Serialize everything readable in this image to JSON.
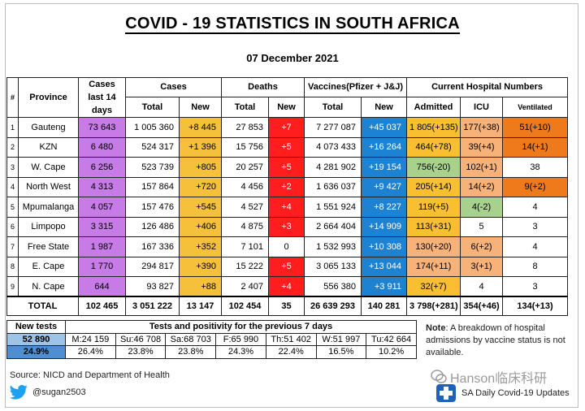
{
  "title": "COVID - 19 STATISTICS IN SOUTH AFRICA",
  "date": "07 December 2021",
  "headers": {
    "hash": "#",
    "province": "Province",
    "cases14": "Cases last 14 days",
    "cases": "Cases",
    "deaths": "Deaths",
    "vaccines": "Vaccines(Pfizer + J&J)",
    "hospital": "Current Hospital Numbers",
    "total": "Total",
    "new": "New",
    "admitted": "Admitted",
    "icu": "ICU",
    "ventilated": "Ventilated"
  },
  "rows": [
    {
      "num": "1",
      "province": "Gauteng",
      "cases14": "73 643",
      "cases_total": "1 005 360",
      "cases_new": "+8 445",
      "deaths_total": "27 853",
      "deaths_new": "+7",
      "vacc_total": "7 277 087",
      "vacc_new": "+45 037",
      "admitted": "1 805(+135)",
      "icu": "177(+38)",
      "ventilated": "51(+10)"
    },
    {
      "num": "2",
      "province": "KZN",
      "cases14": "6 480",
      "cases_total": "524 317",
      "cases_new": "+1 396",
      "deaths_total": "15 756",
      "deaths_new": "+5",
      "vacc_total": "4 073 433",
      "vacc_new": "+16 264",
      "admitted": "464(+78)",
      "icu": "39(+4)",
      "ventilated": "14(+1)"
    },
    {
      "num": "3",
      "province": "W. Cape",
      "cases14": "6 256",
      "cases_total": "523 739",
      "cases_new": "+805",
      "deaths_total": "20 257",
      "deaths_new": "+5",
      "vacc_total": "4 281 902",
      "vacc_new": "+19 154",
      "admitted": "756(-20)",
      "icu": "102(+1)",
      "ventilated": "38"
    },
    {
      "num": "4",
      "province": "North West",
      "cases14": "4 313",
      "cases_total": "157 864",
      "cases_new": "+720",
      "deaths_total": "4 456",
      "deaths_new": "+2",
      "vacc_total": "1 636 037",
      "vacc_new": "+9 427",
      "admitted": "205(+14)",
      "icu": "14(+2)",
      "ventilated": "9(+2)"
    },
    {
      "num": "5",
      "province": "Mpumalanga",
      "cases14": "4 057",
      "cases_total": "157 476",
      "cases_new": "+545",
      "deaths_total": "4 527",
      "deaths_new": "+4",
      "vacc_total": "1 551 924",
      "vacc_new": "+8 227",
      "admitted": "119(+5)",
      "icu": "4(-2)",
      "ventilated": "4"
    },
    {
      "num": "6",
      "province": "Limpopo",
      "cases14": "3 315",
      "cases_total": "126 486",
      "cases_new": "+406",
      "deaths_total": "4 875",
      "deaths_new": "+3",
      "vacc_total": "2 664 404",
      "vacc_new": "+14 909",
      "admitted": "113(+31)",
      "icu": "5",
      "ventilated": "3"
    },
    {
      "num": "7",
      "province": "Free State",
      "cases14": "1 987",
      "cases_total": "167 336",
      "cases_new": "+352",
      "deaths_total": "7 101",
      "deaths_new": "0",
      "vacc_total": "1 532 993",
      "vacc_new": "+10 308",
      "admitted": "130(+20)",
      "icu": "6(+2)",
      "ventilated": "4"
    },
    {
      "num": "8",
      "province": "E. Cape",
      "cases14": "1 770",
      "cases_total": "294 817",
      "cases_new": "+390",
      "deaths_total": "15 222",
      "deaths_new": "+5",
      "vacc_total": "3 065 133",
      "vacc_new": "+13 044",
      "admitted": "174(+11)",
      "icu": "3(+1)",
      "ventilated": "8"
    },
    {
      "num": "9",
      "province": "N. Cape",
      "cases14": "644",
      "cases_total": "93 827",
      "cases_new": "+88",
      "deaths_total": "2 407",
      "deaths_new": "+4",
      "vacc_total": "556 380",
      "vacc_new": "+3 911",
      "admitted": "32(+7)",
      "icu": "4",
      "ventilated": "3"
    }
  ],
  "totals": {
    "label": "TOTAL",
    "cases14": "102 465",
    "cases_total": "3 051 222",
    "cases_new": "13 147",
    "deaths_total": "102 454",
    "deaths_new": "35",
    "vacc_total": "26 639 293",
    "vacc_new": "140 281",
    "admitted": "3 798(+281)",
    "icu": "354(+46)",
    "ventilated": "134(+13)"
  },
  "tests": {
    "new_label": "New tests",
    "new_value": "52 890",
    "positivity": "24.9%",
    "header": "Tests and positivity for the previous 7 days",
    "days": [
      {
        "label": "M:24 159",
        "pct": "26.4%"
      },
      {
        "label": "Su:46 708",
        "pct": "23.8%"
      },
      {
        "label": "Sa:68 703",
        "pct": "23.8%"
      },
      {
        "label": "F:65 990",
        "pct": "24.3%"
      },
      {
        "label": "Th:51 402",
        "pct": "22.4%"
      },
      {
        "label": "W:51 997",
        "pct": "16.5%"
      },
      {
        "label": "Tu:42 664",
        "pct": "10.2%"
      }
    ]
  },
  "note": {
    "bold": "Note",
    "text": ": A breakdown of hospital admissions by vaccine status is not available."
  },
  "source": "Source: NICD and Department of Health",
  "twitter_handle": "@sugan2503",
  "watermark": "Hanson临床科研",
  "sa_updates": "SA Daily Covid-19 Updates",
  "colors": {
    "purple": "#c67be6",
    "yellow": "#f6c13a",
    "red": "#ff1d1d",
    "blue": "#1e82d2",
    "orange": "#ef7a1c",
    "light_orange": "#f7b27a",
    "green": "#a9d18e"
  }
}
